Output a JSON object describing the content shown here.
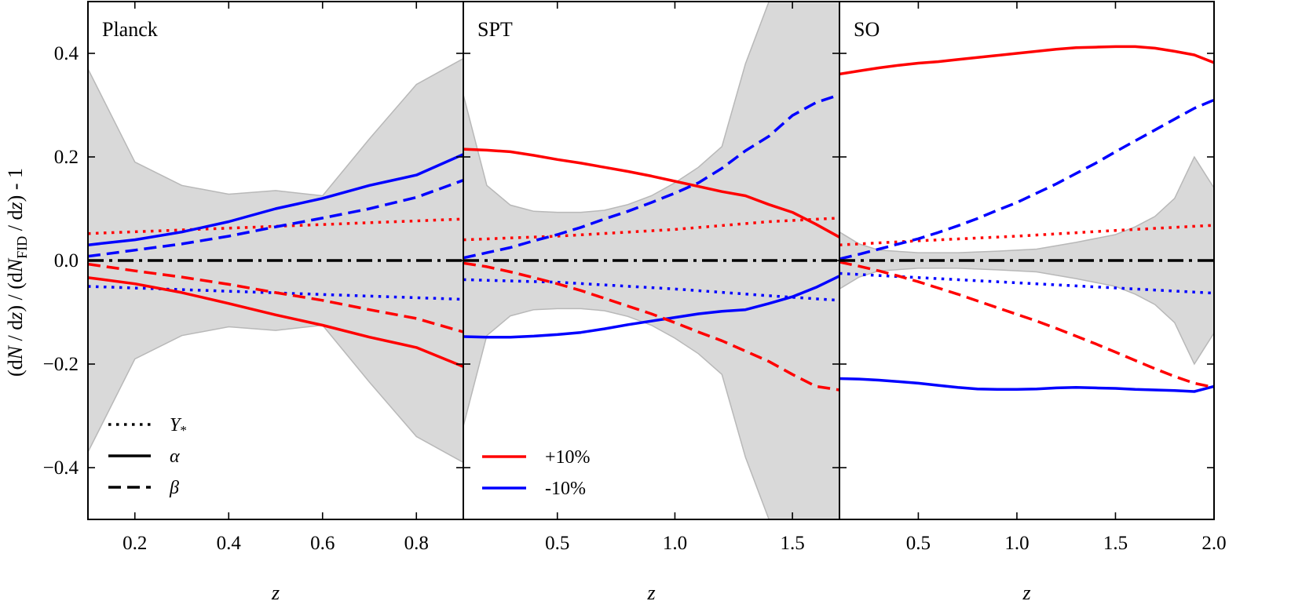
{
  "chart_data": {
    "type": "line",
    "ylabel": "(dN / dz) / (dN_FID / dz) - 1",
    "ylabel_parts": {
      "open": "(d",
      "N": "N",
      "mid1": " / d",
      "z1": "z",
      "mid2": ") / (d",
      "N2": "N",
      "sub": "FID",
      "mid3": " / d",
      "z2": "z",
      "close": ") - 1"
    },
    "ylim": [
      -0.5,
      0.5
    ],
    "yticks": [
      0.4,
      0.2,
      0.0,
      -0.2,
      -0.4
    ],
    "ytick_labels": [
      "0.4",
      "0.2",
      "0.0",
      "−0.2",
      "−0.4"
    ],
    "colors": {
      "plus": "#ff0000",
      "minus": "#0000ff",
      "band": "#d9d9d9",
      "band_edge": "#b8b8b8"
    },
    "legend_styles": {
      "title_a": "",
      "labels_a": [
        "Y*",
        "α",
        "β"
      ],
      "labels_b": [
        "+10%",
        "-10%"
      ]
    },
    "panels": [
      {
        "title": "Planck",
        "xlabel": "z",
        "xlim": [
          0.1,
          0.9
        ],
        "xticks": [
          0.2,
          0.4,
          0.6,
          0.8
        ],
        "xtick_labels": [
          "0.2",
          "0.4",
          "0.6",
          "0.8"
        ],
        "band": {
          "x": [
            0.1,
            0.2,
            0.3,
            0.4,
            0.5,
            0.6,
            0.7,
            0.8,
            0.9
          ],
          "upper": [
            0.37,
            0.19,
            0.145,
            0.128,
            0.135,
            0.125,
            0.235,
            0.34,
            0.39
          ],
          "lower": [
            -0.37,
            -0.19,
            -0.145,
            -0.128,
            -0.135,
            -0.125,
            -0.235,
            -0.34,
            -0.39
          ]
        },
        "series": [
          {
            "name": "Y* +10%",
            "color": "plus",
            "style": "dotted",
            "x": [
              0.1,
              0.9
            ],
            "y": [
              0.052,
              0.08
            ]
          },
          {
            "name": "Y* -10%",
            "color": "minus",
            "style": "dotted",
            "x": [
              0.1,
              0.9
            ],
            "y": [
              -0.05,
              -0.075
            ]
          },
          {
            "name": "alpha +10%",
            "color": "plus",
            "style": "solid",
            "x": [
              0.1,
              0.2,
              0.3,
              0.4,
              0.5,
              0.6,
              0.7,
              0.8,
              0.9
            ],
            "y": [
              -0.033,
              -0.045,
              -0.062,
              -0.083,
              -0.105,
              -0.125,
              -0.148,
              -0.168,
              -0.205
            ]
          },
          {
            "name": "alpha -10%",
            "color": "minus",
            "style": "solid",
            "x": [
              0.1,
              0.2,
              0.3,
              0.4,
              0.5,
              0.6,
              0.7,
              0.8,
              0.9
            ],
            "y": [
              0.03,
              0.04,
              0.055,
              0.075,
              0.1,
              0.12,
              0.145,
              0.165,
              0.205
            ]
          },
          {
            "name": "beta +10%",
            "color": "plus",
            "style": "dashed",
            "x": [
              0.1,
              0.2,
              0.3,
              0.4,
              0.5,
              0.6,
              0.7,
              0.8,
              0.9
            ],
            "y": [
              -0.007,
              -0.02,
              -0.032,
              -0.046,
              -0.062,
              -0.077,
              -0.095,
              -0.112,
              -0.138
            ]
          },
          {
            "name": "beta -10%",
            "color": "minus",
            "style": "dashed",
            "x": [
              0.1,
              0.2,
              0.3,
              0.4,
              0.5,
              0.6,
              0.7,
              0.8,
              0.9
            ],
            "y": [
              0.008,
              0.02,
              0.032,
              0.047,
              0.065,
              0.082,
              0.1,
              0.122,
              0.155
            ]
          },
          {
            "name": "fiducial",
            "color": "black",
            "style": "dashdot",
            "x": [
              0.1,
              0.9
            ],
            "y": [
              0.0,
              0.0
            ]
          }
        ],
        "legend": [
          {
            "style": "dotted",
            "label": "Y",
            "sub": "*"
          },
          {
            "style": "solid",
            "label": "α",
            "sub": ""
          },
          {
            "style": "dashed",
            "label": "β",
            "sub": ""
          }
        ]
      },
      {
        "title": "SPT",
        "xlabel": "z",
        "xlim": [
          0.1,
          1.7
        ],
        "xticks": [
          0.5,
          1.0,
          1.5
        ],
        "xtick_labels": [
          "0.5",
          "1.0",
          "1.5"
        ],
        "band": {
          "x": [
            0.1,
            0.2,
            0.3,
            0.4,
            0.5,
            0.6,
            0.7,
            0.8,
            0.9,
            1.0,
            1.1,
            1.2,
            1.3,
            1.4,
            1.5,
            1.6,
            1.7
          ],
          "upper": [
            0.32,
            0.145,
            0.107,
            0.095,
            0.093,
            0.093,
            0.097,
            0.108,
            0.125,
            0.15,
            0.18,
            0.22,
            0.38,
            0.5,
            0.6,
            0.6,
            0.6
          ],
          "lower": [
            -0.32,
            -0.145,
            -0.107,
            -0.095,
            -0.093,
            -0.093,
            -0.097,
            -0.108,
            -0.125,
            -0.15,
            -0.18,
            -0.22,
            -0.38,
            -0.5,
            -0.6,
            -0.6,
            -0.6
          ]
        },
        "series": [
          {
            "name": "Y* +10%",
            "color": "plus",
            "style": "dotted",
            "x": [
              0.1,
              0.5,
              1.0,
              1.4,
              1.7
            ],
            "y": [
              0.04,
              0.047,
              0.06,
              0.075,
              0.082
            ]
          },
          {
            "name": "Y* -10%",
            "color": "minus",
            "style": "dotted",
            "x": [
              0.1,
              0.5,
              1.0,
              1.4,
              1.7
            ],
            "y": [
              -0.037,
              -0.042,
              -0.055,
              -0.068,
              -0.077
            ]
          },
          {
            "name": "alpha +10%",
            "color": "plus",
            "style": "solid",
            "x": [
              0.1,
              0.2,
              0.3,
              0.4,
              0.5,
              0.6,
              0.7,
              0.8,
              0.9,
              1.0,
              1.1,
              1.2,
              1.3,
              1.4,
              1.5,
              1.6,
              1.7
            ],
            "y": [
              0.215,
              0.213,
              0.21,
              0.203,
              0.195,
              0.188,
              0.18,
              0.172,
              0.163,
              0.153,
              0.143,
              0.133,
              0.125,
              0.108,
              0.093,
              0.07,
              0.045
            ]
          },
          {
            "name": "alpha -10%",
            "color": "minus",
            "style": "solid",
            "x": [
              0.1,
              0.2,
              0.3,
              0.4,
              0.5,
              0.6,
              0.7,
              0.8,
              0.9,
              1.0,
              1.1,
              1.2,
              1.3,
              1.4,
              1.5,
              1.6,
              1.7
            ],
            "y": [
              -0.147,
              -0.148,
              -0.148,
              -0.146,
              -0.143,
              -0.139,
              -0.132,
              -0.124,
              -0.117,
              -0.11,
              -0.103,
              -0.098,
              -0.095,
              -0.083,
              -0.07,
              -0.052,
              -0.03
            ]
          },
          {
            "name": "beta +10%",
            "color": "plus",
            "style": "dashed",
            "x": [
              0.1,
              0.2,
              0.3,
              0.4,
              0.5,
              0.6,
              0.7,
              0.8,
              0.9,
              1.0,
              1.1,
              1.2,
              1.3,
              1.4,
              1.5,
              1.6,
              1.7
            ],
            "y": [
              -0.005,
              -0.012,
              -0.022,
              -0.033,
              -0.045,
              -0.058,
              -0.073,
              -0.088,
              -0.103,
              -0.12,
              -0.138,
              -0.155,
              -0.175,
              -0.195,
              -0.22,
              -0.243,
              -0.25
            ]
          },
          {
            "name": "beta -10%",
            "color": "minus",
            "style": "dashed",
            "x": [
              0.1,
              0.2,
              0.3,
              0.4,
              0.5,
              0.6,
              0.7,
              0.8,
              0.9,
              1.0,
              1.1,
              1.2,
              1.3,
              1.4,
              1.5,
              1.6,
              1.7
            ],
            "y": [
              0.005,
              0.015,
              0.025,
              0.038,
              0.05,
              0.064,
              0.08,
              0.095,
              0.112,
              0.13,
              0.15,
              0.178,
              0.212,
              0.24,
              0.28,
              0.305,
              0.32
            ]
          },
          {
            "name": "fiducial",
            "color": "black",
            "style": "dashdot",
            "x": [
              0.1,
              1.7
            ],
            "y": [
              0.0,
              0.0
            ]
          }
        ],
        "legend": [
          {
            "style": "solid",
            "color": "plus",
            "label": "+10%"
          },
          {
            "style": "solid",
            "color": "minus",
            "label": "-10%"
          }
        ]
      },
      {
        "title": "SO",
        "xlabel": "z",
        "xlim": [
          0.1,
          2.0
        ],
        "xticks": [
          0.5,
          1.0,
          1.5,
          2.0
        ],
        "xtick_labels": [
          "0.5",
          "1.0",
          "1.5",
          "2.0"
        ],
        "band": {
          "x": [
            0.1,
            0.2,
            0.3,
            0.5,
            0.7,
            0.9,
            1.1,
            1.3,
            1.5,
            1.6,
            1.7,
            1.8,
            1.85,
            1.9,
            1.95,
            2.0
          ],
          "upper": [
            0.055,
            0.032,
            0.02,
            0.015,
            0.015,
            0.018,
            0.022,
            0.035,
            0.05,
            0.065,
            0.085,
            0.12,
            0.16,
            0.2,
            0.17,
            0.14
          ],
          "lower": [
            -0.055,
            -0.032,
            -0.02,
            -0.015,
            -0.015,
            -0.018,
            -0.022,
            -0.035,
            -0.05,
            -0.065,
            -0.085,
            -0.12,
            -0.16,
            -0.2,
            -0.17,
            -0.14
          ]
        },
        "series": [
          {
            "name": "Y* +10%",
            "color": "plus",
            "style": "dotted",
            "x": [
              0.1,
              0.5,
              1.0,
              1.5,
              2.0
            ],
            "y": [
              0.03,
              0.038,
              0.047,
              0.058,
              0.068
            ]
          },
          {
            "name": "Y* -10%",
            "color": "minus",
            "style": "dotted",
            "x": [
              0.1,
              0.5,
              1.0,
              1.5,
              2.0
            ],
            "y": [
              -0.025,
              -0.033,
              -0.043,
              -0.053,
              -0.063
            ]
          },
          {
            "name": "alpha +10%",
            "color": "plus",
            "style": "solid",
            "x": [
              0.1,
              0.2,
              0.3,
              0.4,
              0.5,
              0.6,
              0.7,
              0.8,
              0.9,
              1.0,
              1.1,
              1.2,
              1.3,
              1.4,
              1.5,
              1.6,
              1.7,
              1.8,
              1.9,
              2.0
            ],
            "y": [
              0.36,
              0.366,
              0.372,
              0.377,
              0.381,
              0.384,
              0.388,
              0.392,
              0.396,
              0.4,
              0.404,
              0.408,
              0.411,
              0.412,
              0.413,
              0.413,
              0.41,
              0.404,
              0.397,
              0.382
            ]
          },
          {
            "name": "alpha -10%",
            "color": "minus",
            "style": "solid",
            "x": [
              0.1,
              0.2,
              0.3,
              0.4,
              0.5,
              0.6,
              0.7,
              0.8,
              0.9,
              1.0,
              1.1,
              1.2,
              1.3,
              1.4,
              1.5,
              1.6,
              1.7,
              1.8,
              1.9,
              2.0
            ],
            "y": [
              -0.228,
              -0.229,
              -0.231,
              -0.234,
              -0.237,
              -0.241,
              -0.245,
              -0.248,
              -0.249,
              -0.249,
              -0.248,
              -0.246,
              -0.245,
              -0.246,
              -0.247,
              -0.249,
              -0.25,
              -0.251,
              -0.253,
              -0.243
            ]
          },
          {
            "name": "beta +10%",
            "color": "plus",
            "style": "dashed",
            "x": [
              0.1,
              0.2,
              0.3,
              0.4,
              0.5,
              0.6,
              0.7,
              0.8,
              0.9,
              1.0,
              1.1,
              1.2,
              1.3,
              1.4,
              1.5,
              1.6,
              1.7,
              1.8,
              1.9,
              2.0
            ],
            "y": [
              -0.003,
              -0.011,
              -0.02,
              -0.03,
              -0.041,
              -0.053,
              -0.065,
              -0.078,
              -0.091,
              -0.104,
              -0.117,
              -0.131,
              -0.146,
              -0.161,
              -0.177,
              -0.193,
              -0.209,
              -0.224,
              -0.237,
              -0.245
            ]
          },
          {
            "name": "beta -10%",
            "color": "minus",
            "style": "dashed",
            "x": [
              0.1,
              0.2,
              0.3,
              0.4,
              0.5,
              0.6,
              0.7,
              0.8,
              0.9,
              1.0,
              1.1,
              1.2,
              1.3,
              1.4,
              1.5,
              1.6,
              1.7,
              1.8,
              1.9,
              2.0
            ],
            "y": [
              0.003,
              0.012,
              0.022,
              0.032,
              0.042,
              0.054,
              0.067,
              0.081,
              0.097,
              0.112,
              0.13,
              0.148,
              0.168,
              0.188,
              0.21,
              0.231,
              0.252,
              0.273,
              0.294,
              0.31
            ]
          },
          {
            "name": "fiducial",
            "color": "black",
            "style": "dashdot",
            "x": [
              0.1,
              2.0
            ],
            "y": [
              0.0,
              0.0
            ]
          }
        ]
      }
    ]
  }
}
